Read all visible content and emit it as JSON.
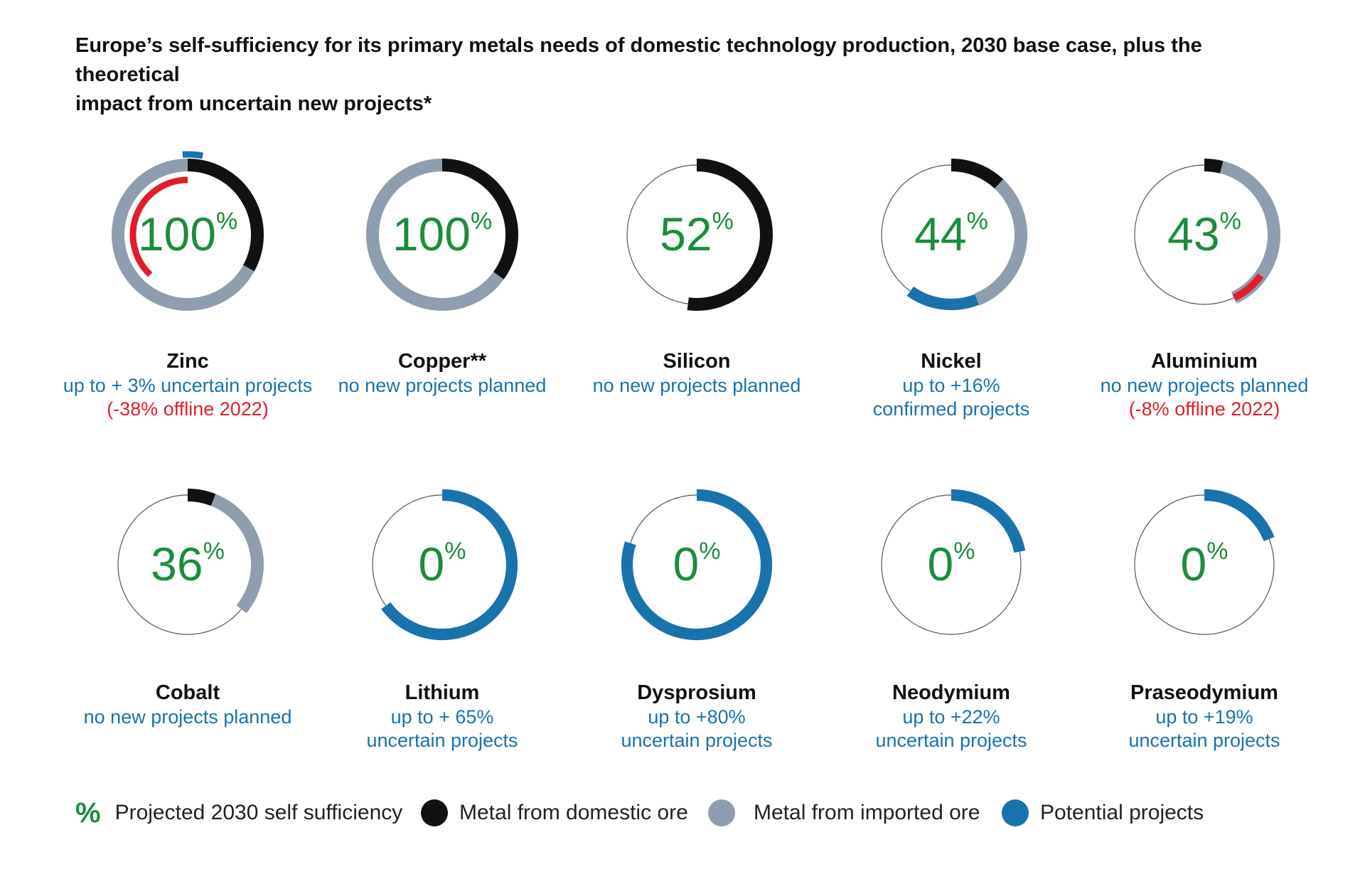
{
  "title_lines": [
    "Europe’s self-sufficiency for its primary metals needs of domestic technology production, 2030 base case, plus the theoretical",
    "impact from uncertain new projects*"
  ],
  "colors": {
    "domestic": "#111111",
    "imported": "#8e9eae",
    "potential": "#1a72ad",
    "offline": "#e01e2b",
    "percent": "#1c8c3c",
    "outline": "#555555"
  },
  "chart_data": {
    "type": "donut",
    "unit": "%",
    "items": [
      {
        "metal": "Zinc",
        "self_sufficiency": 100,
        "domestic": 33,
        "imported": 67,
        "potential": 3,
        "offline": 38,
        "notes": [
          {
            "text": "up to + 3% uncertain projects",
            "tone": "blue"
          },
          {
            "text": "(-38% offline 2022)",
            "tone": "red"
          }
        ]
      },
      {
        "metal": "Copper**",
        "self_sufficiency": 100,
        "domestic": 35,
        "imported": 65,
        "potential": 0,
        "offline": 0,
        "notes": [
          {
            "text": "no new projects planned",
            "tone": "blue"
          }
        ]
      },
      {
        "metal": "Silicon",
        "self_sufficiency": 52,
        "domestic": 52,
        "imported": 0,
        "potential": 0,
        "offline": 0,
        "notes": [
          {
            "text": "no new projects planned",
            "tone": "blue"
          }
        ]
      },
      {
        "metal": "Nickel",
        "self_sufficiency": 44,
        "domestic": 12,
        "imported": 32,
        "potential": 16,
        "offline": 0,
        "notes": [
          {
            "text": "up to +16%",
            "tone": "blue"
          },
          {
            "text": "confirmed projects",
            "tone": "blue"
          }
        ]
      },
      {
        "metal": "Aluminium",
        "self_sufficiency": 43,
        "domestic": 4,
        "imported": 39,
        "potential": 0,
        "offline": 8,
        "notes": [
          {
            "text": "no new projects planned",
            "tone": "blue"
          },
          {
            "text": "(-8% offline 2022)",
            "tone": "red"
          }
        ]
      },
      {
        "metal": "Cobalt",
        "self_sufficiency": 36,
        "domestic": 6,
        "imported": 30,
        "potential": 0,
        "offline": 0,
        "notes": [
          {
            "text": "no new projects planned",
            "tone": "blue"
          }
        ]
      },
      {
        "metal": "Lithium",
        "self_sufficiency": 0,
        "domestic": 0,
        "imported": 0,
        "potential": 65,
        "offline": 0,
        "notes": [
          {
            "text": "up to + 65%",
            "tone": "blue"
          },
          {
            "text": "uncertain projects",
            "tone": "blue"
          }
        ]
      },
      {
        "metal": "Dysprosium",
        "self_sufficiency": 0,
        "domestic": 0,
        "imported": 0,
        "potential": 80,
        "offline": 0,
        "notes": [
          {
            "text": "up to +80%",
            "tone": "blue"
          },
          {
            "text": "uncertain projects",
            "tone": "blue"
          }
        ]
      },
      {
        "metal": "Neodymium",
        "self_sufficiency": 0,
        "domestic": 0,
        "imported": 0,
        "potential": 22,
        "offline": 0,
        "notes": [
          {
            "text": "up to +22%",
            "tone": "blue"
          },
          {
            "text": "uncertain projects",
            "tone": "blue"
          }
        ]
      },
      {
        "metal": "Praseodymium",
        "self_sufficiency": 0,
        "domestic": 0,
        "imported": 0,
        "potential": 19,
        "offline": 0,
        "notes": [
          {
            "text": "up to +19%",
            "tone": "blue"
          },
          {
            "text": "uncertain projects",
            "tone": "blue"
          }
        ]
      }
    ]
  },
  "legend": {
    "percent_symbol": "%",
    "percent_label": "Projected 2030 self sufficiency",
    "domestic_label": "Metal from domestic ore",
    "imported_label": "Metal from imported ore",
    "potential_label": "Potential projects"
  }
}
